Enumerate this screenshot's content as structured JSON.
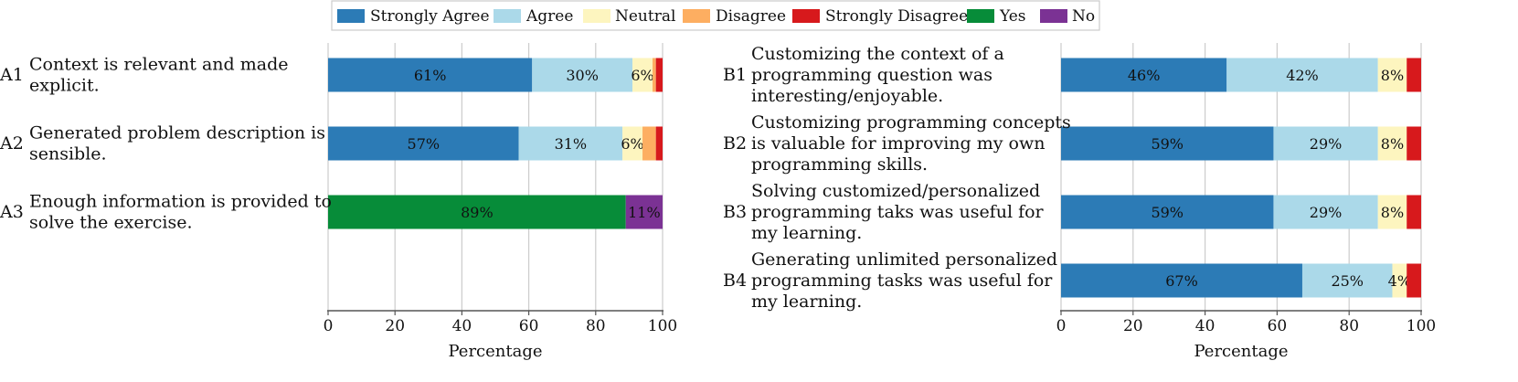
{
  "colors": {
    "Strongly Agree": "#2c7bb6",
    "Agree": "#abd9e9",
    "Neutral": "#fdf5bf",
    "Disagree": "#fdae61",
    "Strongly Disagree": "#d7191c",
    "Yes": "#078c39",
    "No": "#7b3294",
    "grid": "#cccccc",
    "axis": "#555555"
  },
  "legend": {
    "items": [
      "Strongly Agree",
      "Agree",
      "Neutral",
      "Disagree",
      "Strongly Disagree",
      "Yes",
      "No"
    ]
  },
  "chart_data": [
    {
      "type": "bar",
      "orientation": "horizontal",
      "stacked": true,
      "xlabel": "Percentage",
      "xlim": [
        0,
        100
      ],
      "xticks": [
        0,
        20,
        40,
        60,
        80,
        100
      ],
      "grid": true,
      "legend_position": "top-center",
      "rows": [
        {
          "id": "A1",
          "label_lines": [
            "Context is relevant and made",
            "explicit."
          ],
          "segments": [
            {
              "category": "Strongly Agree",
              "value": 61,
              "label": "61%"
            },
            {
              "category": "Agree",
              "value": 30,
              "label": "30%"
            },
            {
              "category": "Neutral",
              "value": 6,
              "label": "6%"
            },
            {
              "category": "Disagree",
              "value": 1,
              "label": ""
            },
            {
              "category": "Strongly Disagree",
              "value": 2,
              "label": ""
            }
          ]
        },
        {
          "id": "A2",
          "label_lines": [
            "Generated problem description is",
            "sensible."
          ],
          "segments": [
            {
              "category": "Strongly Agree",
              "value": 57,
              "label": "57%"
            },
            {
              "category": "Agree",
              "value": 31,
              "label": "31%"
            },
            {
              "category": "Neutral",
              "value": 6,
              "label": "6%"
            },
            {
              "category": "Disagree",
              "value": 4,
              "label": ""
            },
            {
              "category": "Strongly Disagree",
              "value": 2,
              "label": ""
            }
          ]
        },
        {
          "id": "A3",
          "label_lines": [
            "Enough information is provided to",
            "solve the exercise."
          ],
          "segments": [
            {
              "category": "Yes",
              "value": 89,
              "label": "89%"
            },
            {
              "category": "No",
              "value": 11,
              "label": "11%"
            }
          ]
        }
      ]
    },
    {
      "type": "bar",
      "orientation": "horizontal",
      "stacked": true,
      "xlabel": "Percentage",
      "xlim": [
        0,
        100
      ],
      "xticks": [
        0,
        20,
        40,
        60,
        80,
        100
      ],
      "grid": true,
      "rows": [
        {
          "id": "B1",
          "label_lines": [
            "Customizing the context of a",
            "programming question was",
            "interesting/enjoyable."
          ],
          "segments": [
            {
              "category": "Strongly Agree",
              "value": 46,
              "label": "46%"
            },
            {
              "category": "Agree",
              "value": 42,
              "label": "42%"
            },
            {
              "category": "Neutral",
              "value": 8,
              "label": "8%"
            },
            {
              "category": "Strongly Disagree",
              "value": 4,
              "label": ""
            }
          ]
        },
        {
          "id": "B2",
          "label_lines": [
            "Customizing programming concepts",
            "is valuable for improving my own",
            "programming skills."
          ],
          "segments": [
            {
              "category": "Strongly Agree",
              "value": 59,
              "label": "59%"
            },
            {
              "category": "Agree",
              "value": 29,
              "label": "29%"
            },
            {
              "category": "Neutral",
              "value": 8,
              "label": "8%"
            },
            {
              "category": "Strongly Disagree",
              "value": 4,
              "label": ""
            }
          ]
        },
        {
          "id": "B3",
          "label_lines": [
            "Solving customized/personalized",
            "programming taks was useful for",
            "my learning."
          ],
          "segments": [
            {
              "category": "Strongly Agree",
              "value": 59,
              "label": "59%"
            },
            {
              "category": "Agree",
              "value": 29,
              "label": "29%"
            },
            {
              "category": "Neutral",
              "value": 8,
              "label": "8%"
            },
            {
              "category": "Strongly Disagree",
              "value": 4,
              "label": ""
            }
          ]
        },
        {
          "id": "B4",
          "label_lines": [
            "Generating unlimited personalized",
            "programming tasks was useful for",
            "my learning."
          ],
          "segments": [
            {
              "category": "Strongly Agree",
              "value": 67,
              "label": "67%"
            },
            {
              "category": "Agree",
              "value": 25,
              "label": "25%"
            },
            {
              "category": "Neutral",
              "value": 4,
              "label": "4%"
            },
            {
              "category": "Strongly Disagree",
              "value": 4,
              "label": ""
            }
          ]
        }
      ]
    }
  ]
}
